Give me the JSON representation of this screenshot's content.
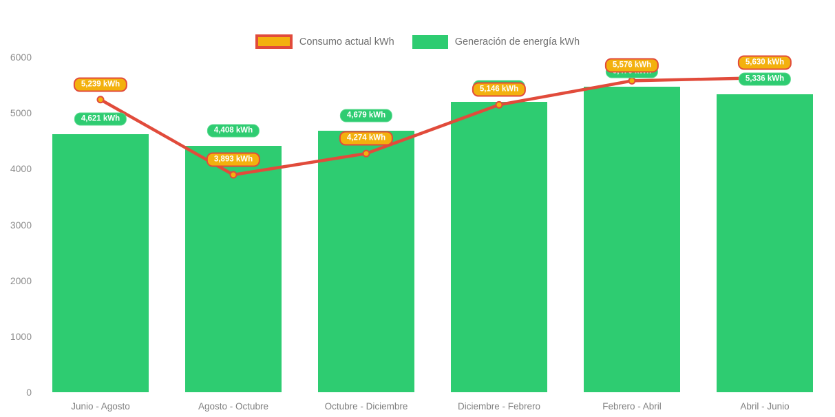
{
  "chart_data": {
    "type": "bar",
    "title": "",
    "categories": [
      "Junio - Agosto",
      "Agosto - Octubre",
      "Octubre - Diciembre",
      "Diciembre - Febrero",
      "Febrero - Abril",
      "Abril - Junio"
    ],
    "series": [
      {
        "name": "Consumo actual kWh",
        "type": "line",
        "color": "#e14b3b",
        "marker_color": "#f3b10e",
        "values": [
          5239,
          3893,
          4274,
          5146,
          5576,
          5630
        ],
        "labels": [
          "5,239 kWh",
          "3,893 kWh",
          "4,274 kWh",
          "5,146 kWh",
          "5,576 kWh",
          "5,630 kWh"
        ]
      },
      {
        "name": "Generación de energía kWh",
        "type": "bar",
        "color": "#2ecc71",
        "values": [
          4621,
          4408,
          4679,
          5198,
          5476,
          5336
        ],
        "labels": [
          "4,621 kWh",
          "4,408 kWh",
          "4,679 kWh",
          "5,198 kWh",
          "5,476 kWh",
          "5,336 kWh"
        ]
      }
    ],
    "ylim": [
      0,
      6000
    ],
    "yticks": [
      0,
      1000,
      2000,
      3000,
      4000,
      5000,
      6000
    ],
    "ytick_labels": [
      "0",
      "1000",
      "2000",
      "3000",
      "4000",
      "5000",
      "6000"
    ],
    "xlabel": "",
    "ylabel": "",
    "grid": false,
    "legend_position": "top",
    "colors": {
      "bar_green": "#2ecc71",
      "line_red": "#e14b3b",
      "marker_orange": "#f3b10e",
      "axis_text_gray": "#8c8c8c",
      "legend_text_gray": "#6e6e6e",
      "background": "#ffffff"
    }
  }
}
